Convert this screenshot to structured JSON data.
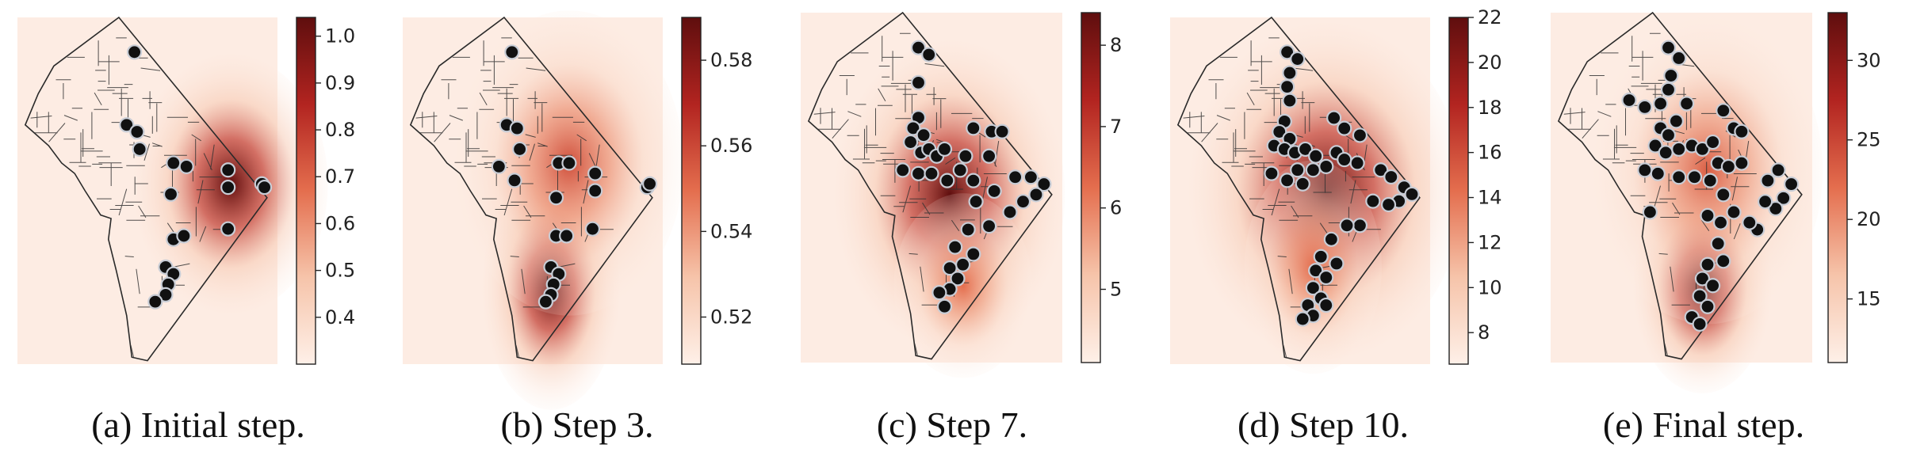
{
  "figure": {
    "panels": [
      {
        "caption": "(a) Initial step."
      },
      {
        "caption": "(b) Step 3."
      },
      {
        "caption": "(c) Step 7."
      },
      {
        "caption": "(d) Step 10."
      },
      {
        "caption": "(e) Final step."
      }
    ]
  },
  "chart_data": [
    {
      "type": "heatmap",
      "title": "",
      "colormap": "Reds",
      "colorbar": {
        "range": [
          0.3,
          1.04
        ],
        "ticks": [
          0.4,
          0.5,
          0.6,
          0.7,
          0.8,
          0.9,
          1.0
        ],
        "tick_labels": [
          "0.4",
          "0.5",
          "0.6",
          "0.7",
          "0.8",
          "0.9",
          "1.0"
        ]
      },
      "hotspots": [
        {
          "x": 0.82,
          "y": 0.48,
          "sx": 0.17,
          "sy": 0.17,
          "w": 1.0
        }
      ],
      "points": [
        [
          0.45,
          0.1
        ],
        [
          0.42,
          0.31
        ],
        [
          0.46,
          0.33
        ],
        [
          0.47,
          0.38
        ],
        [
          0.6,
          0.42
        ],
        [
          0.65,
          0.43
        ],
        [
          0.59,
          0.51
        ],
        [
          0.81,
          0.44
        ],
        [
          0.81,
          0.49
        ],
        [
          0.94,
          0.48
        ],
        [
          0.95,
          0.49
        ],
        [
          0.81,
          0.61
        ],
        [
          0.6,
          0.64
        ],
        [
          0.64,
          0.63
        ],
        [
          0.57,
          0.72
        ],
        [
          0.6,
          0.74
        ],
        [
          0.58,
          0.77
        ],
        [
          0.57,
          0.8
        ],
        [
          0.53,
          0.82
        ]
      ]
    },
    {
      "type": "heatmap",
      "title": "",
      "colormap": "Reds",
      "colorbar": {
        "range": [
          0.509,
          0.59
        ],
        "ticks": [
          0.52,
          0.54,
          0.56,
          0.58
        ],
        "tick_labels": [
          "0.52",
          "0.54",
          "0.56",
          "0.58"
        ]
      },
      "hotspots": [
        {
          "x": 0.57,
          "y": 0.78,
          "sx": 0.12,
          "sy": 0.16,
          "w": 1.0
        },
        {
          "x": 0.64,
          "y": 0.42,
          "sx": 0.2,
          "sy": 0.2,
          "w": 0.6
        }
      ],
      "points": [
        [
          0.42,
          0.1
        ],
        [
          0.4,
          0.31
        ],
        [
          0.44,
          0.32
        ],
        [
          0.45,
          0.38
        ],
        [
          0.37,
          0.43
        ],
        [
          0.43,
          0.47
        ],
        [
          0.6,
          0.42
        ],
        [
          0.64,
          0.42
        ],
        [
          0.74,
          0.45
        ],
        [
          0.74,
          0.5
        ],
        [
          0.94,
          0.49
        ],
        [
          0.95,
          0.48
        ],
        [
          0.59,
          0.52
        ],
        [
          0.73,
          0.61
        ],
        [
          0.59,
          0.63
        ],
        [
          0.63,
          0.63
        ],
        [
          0.57,
          0.72
        ],
        [
          0.6,
          0.74
        ],
        [
          0.58,
          0.77
        ],
        [
          0.57,
          0.8
        ],
        [
          0.55,
          0.82
        ]
      ]
    },
    {
      "type": "heatmap",
      "title": "",
      "colormap": "Reds",
      "colorbar": {
        "range": [
          4.1,
          8.4
        ],
        "ticks": [
          5,
          6,
          7,
          8
        ],
        "tick_labels": [
          "5",
          "6",
          "7",
          "8"
        ]
      },
      "hotspots": [
        {
          "x": 0.57,
          "y": 0.52,
          "sx": 0.2,
          "sy": 0.2,
          "w": 1.0
        },
        {
          "x": 0.62,
          "y": 0.78,
          "sx": 0.12,
          "sy": 0.12,
          "w": 0.5
        }
      ],
      "points": [
        [
          0.45,
          0.1
        ],
        [
          0.49,
          0.12
        ],
        [
          0.45,
          0.2
        ],
        [
          0.45,
          0.3
        ],
        [
          0.43,
          0.33
        ],
        [
          0.47,
          0.35
        ],
        [
          0.42,
          0.37
        ],
        [
          0.46,
          0.4
        ],
        [
          0.49,
          0.39
        ],
        [
          0.52,
          0.41
        ],
        [
          0.55,
          0.39
        ],
        [
          0.39,
          0.45
        ],
        [
          0.45,
          0.46
        ],
        [
          0.5,
          0.46
        ],
        [
          0.56,
          0.48
        ],
        [
          0.61,
          0.45
        ],
        [
          0.66,
          0.33
        ],
        [
          0.73,
          0.34
        ],
        [
          0.77,
          0.34
        ],
        [
          0.72,
          0.41
        ],
        [
          0.63,
          0.41
        ],
        [
          0.66,
          0.48
        ],
        [
          0.67,
          0.54
        ],
        [
          0.74,
          0.51
        ],
        [
          0.82,
          0.47
        ],
        [
          0.88,
          0.47
        ],
        [
          0.93,
          0.49
        ],
        [
          0.9,
          0.52
        ],
        [
          0.85,
          0.54
        ],
        [
          0.8,
          0.57
        ],
        [
          0.72,
          0.61
        ],
        [
          0.64,
          0.62
        ],
        [
          0.59,
          0.67
        ],
        [
          0.66,
          0.69
        ],
        [
          0.62,
          0.72
        ],
        [
          0.57,
          0.73
        ],
        [
          0.6,
          0.76
        ],
        [
          0.57,
          0.79
        ],
        [
          0.53,
          0.8
        ],
        [
          0.55,
          0.84
        ]
      ]
    },
    {
      "type": "heatmap",
      "title": "",
      "colormap": "Reds",
      "colorbar": {
        "range": [
          6.6,
          22.0
        ],
        "ticks": [
          8,
          10,
          12,
          14,
          16,
          18,
          20,
          22
        ],
        "tick_labels": [
          "8",
          "10",
          "12",
          "14",
          "16",
          "18",
          "20",
          "22"
        ]
      },
      "hotspots": [
        {
          "x": 0.6,
          "y": 0.5,
          "sx": 0.24,
          "sy": 0.22,
          "w": 1.0
        },
        {
          "x": 0.55,
          "y": 0.72,
          "sx": 0.12,
          "sy": 0.14,
          "w": 0.5
        }
      ],
      "points": [
        [
          0.45,
          0.1
        ],
        [
          0.49,
          0.12
        ],
        [
          0.46,
          0.16
        ],
        [
          0.45,
          0.2
        ],
        [
          0.46,
          0.24
        ],
        [
          0.44,
          0.3
        ],
        [
          0.42,
          0.33
        ],
        [
          0.46,
          0.35
        ],
        [
          0.4,
          0.37
        ],
        [
          0.44,
          0.38
        ],
        [
          0.48,
          0.39
        ],
        [
          0.52,
          0.38
        ],
        [
          0.56,
          0.4
        ],
        [
          0.49,
          0.44
        ],
        [
          0.55,
          0.44
        ],
        [
          0.6,
          0.43
        ],
        [
          0.39,
          0.45
        ],
        [
          0.45,
          0.47
        ],
        [
          0.51,
          0.48
        ],
        [
          0.63,
          0.29
        ],
        [
          0.67,
          0.32
        ],
        [
          0.73,
          0.34
        ],
        [
          0.64,
          0.39
        ],
        [
          0.67,
          0.41
        ],
        [
          0.72,
          0.42
        ],
        [
          0.81,
          0.44
        ],
        [
          0.85,
          0.46
        ],
        [
          0.9,
          0.49
        ],
        [
          0.93,
          0.51
        ],
        [
          0.88,
          0.53
        ],
        [
          0.84,
          0.54
        ],
        [
          0.78,
          0.53
        ],
        [
          0.73,
          0.6
        ],
        [
          0.68,
          0.6
        ],
        [
          0.62,
          0.64
        ],
        [
          0.58,
          0.69
        ],
        [
          0.64,
          0.71
        ],
        [
          0.56,
          0.73
        ],
        [
          0.6,
          0.75
        ],
        [
          0.55,
          0.78
        ],
        [
          0.58,
          0.81
        ],
        [
          0.53,
          0.83
        ],
        [
          0.6,
          0.83
        ],
        [
          0.55,
          0.86
        ],
        [
          0.51,
          0.87
        ]
      ]
    },
    {
      "type": "heatmap",
      "title": "",
      "colormap": "Reds",
      "colorbar": {
        "range": [
          11.0,
          33.0
        ],
        "ticks": [
          15,
          20,
          25,
          30
        ],
        "tick_labels": [
          "15",
          "20",
          "25",
          "30"
        ]
      },
      "hotspots": [
        {
          "x": 0.58,
          "y": 0.78,
          "sx": 0.12,
          "sy": 0.14,
          "w": 1.0
        },
        {
          "x": 0.6,
          "y": 0.45,
          "sx": 0.2,
          "sy": 0.2,
          "w": 0.55
        }
      ],
      "points": [
        [
          0.3,
          0.25
        ],
        [
          0.36,
          0.27
        ],
        [
          0.42,
          0.26
        ],
        [
          0.45,
          0.1
        ],
        [
          0.49,
          0.13
        ],
        [
          0.46,
          0.18
        ],
        [
          0.45,
          0.22
        ],
        [
          0.52,
          0.26
        ],
        [
          0.48,
          0.31
        ],
        [
          0.42,
          0.33
        ],
        [
          0.45,
          0.35
        ],
        [
          0.4,
          0.38
        ],
        [
          0.44,
          0.4
        ],
        [
          0.49,
          0.39
        ],
        [
          0.54,
          0.38
        ],
        [
          0.58,
          0.39
        ],
        [
          0.62,
          0.37
        ],
        [
          0.66,
          0.28
        ],
        [
          0.7,
          0.33
        ],
        [
          0.73,
          0.34
        ],
        [
          0.64,
          0.43
        ],
        [
          0.68,
          0.44
        ],
        [
          0.73,
          0.43
        ],
        [
          0.61,
          0.48
        ],
        [
          0.66,
          0.52
        ],
        [
          0.55,
          0.47
        ],
        [
          0.49,
          0.47
        ],
        [
          0.41,
          0.46
        ],
        [
          0.36,
          0.45
        ],
        [
          0.38,
          0.57
        ],
        [
          0.6,
          0.58
        ],
        [
          0.65,
          0.6
        ],
        [
          0.7,
          0.57
        ],
        [
          0.83,
          0.48
        ],
        [
          0.87,
          0.45
        ],
        [
          0.92,
          0.49
        ],
        [
          0.89,
          0.53
        ],
        [
          0.86,
          0.56
        ],
        [
          0.82,
          0.54
        ],
        [
          0.79,
          0.62
        ],
        [
          0.76,
          0.6
        ],
        [
          0.64,
          0.66
        ],
        [
          0.66,
          0.71
        ],
        [
          0.6,
          0.72
        ],
        [
          0.58,
          0.76
        ],
        [
          0.62,
          0.78
        ],
        [
          0.57,
          0.81
        ],
        [
          0.6,
          0.84
        ],
        [
          0.54,
          0.87
        ],
        [
          0.57,
          0.89
        ]
      ]
    }
  ]
}
